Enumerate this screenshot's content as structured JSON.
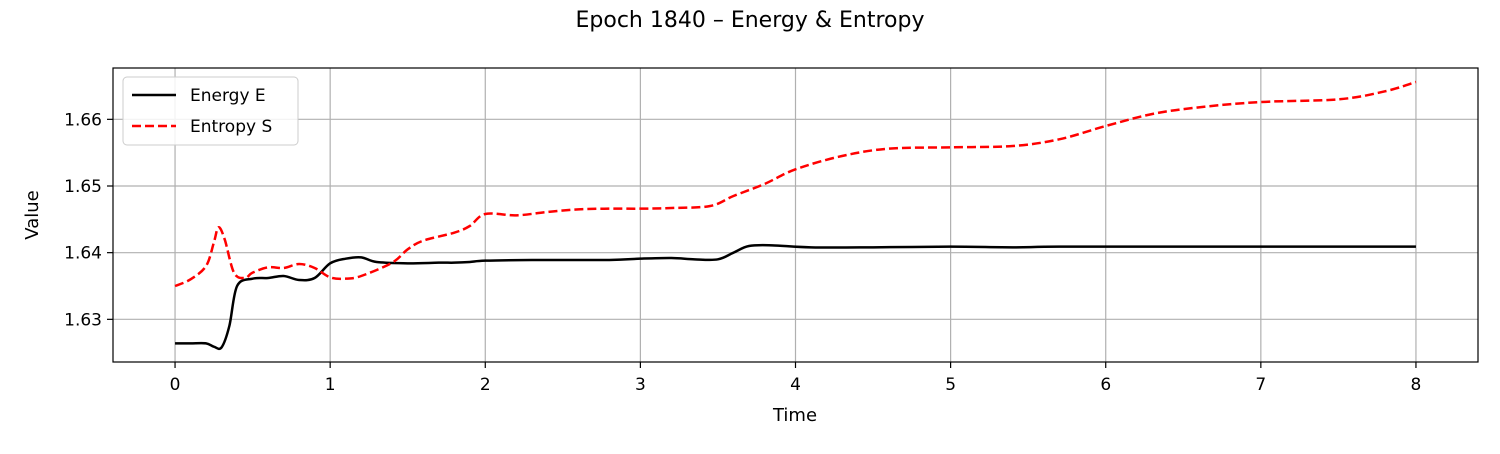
{
  "chart_data": {
    "type": "line",
    "title": "Epoch 1840 – Energy & Entropy",
    "xlabel": "Time",
    "ylabel": "Value",
    "xlim": [
      -0.4,
      8.4
    ],
    "ylim": [
      1.6236,
      1.6677
    ],
    "grid": true,
    "legend_position": "top-left",
    "x_ticks": [
      {
        "value": 0,
        "label": "0"
      },
      {
        "value": 1,
        "label": "1"
      },
      {
        "value": 2,
        "label": "2"
      },
      {
        "value": 3,
        "label": "3"
      },
      {
        "value": 4,
        "label": "4"
      },
      {
        "value": 5,
        "label": "5"
      },
      {
        "value": 6,
        "label": "6"
      },
      {
        "value": 7,
        "label": "7"
      },
      {
        "value": 8,
        "label": "8"
      }
    ],
    "y_ticks": [
      {
        "value": 1.63,
        "label": "1.63"
      },
      {
        "value": 1.64,
        "label": "1.64"
      },
      {
        "value": 1.65,
        "label": "1.65"
      },
      {
        "value": 1.66,
        "label": "1.66"
      }
    ],
    "series": [
      {
        "name": "Energy E",
        "color": "#000000",
        "style": "solid",
        "points": [
          [
            0,
            1.6264
          ],
          [
            0.1,
            1.6264
          ],
          [
            0.2,
            1.6264
          ],
          [
            0.25,
            1.6259
          ],
          [
            0.3,
            1.6258
          ],
          [
            0.35,
            1.629
          ],
          [
            0.4,
            1.635
          ],
          [
            0.5,
            1.6361
          ],
          [
            0.6,
            1.6362
          ],
          [
            0.7,
            1.6365
          ],
          [
            0.8,
            1.6359
          ],
          [
            0.9,
            1.6362
          ],
          [
            1.0,
            1.6384
          ],
          [
            1.1,
            1.6391
          ],
          [
            1.2,
            1.6393
          ],
          [
            1.3,
            1.6386
          ],
          [
            1.5,
            1.6384
          ],
          [
            1.7,
            1.6385
          ],
          [
            1.8,
            1.6385
          ],
          [
            1.9,
            1.6386
          ],
          [
            2.0,
            1.6388
          ],
          [
            2.3,
            1.6389
          ],
          [
            2.8,
            1.6389
          ],
          [
            3.0,
            1.6391
          ],
          [
            3.2,
            1.6392
          ],
          [
            3.35,
            1.639
          ],
          [
            3.5,
            1.639
          ],
          [
            3.6,
            1.64
          ],
          [
            3.7,
            1.641
          ],
          [
            3.85,
            1.6411
          ],
          [
            4.1,
            1.6408
          ],
          [
            4.5,
            1.6408
          ],
          [
            5.0,
            1.6409
          ],
          [
            5.4,
            1.6408
          ],
          [
            5.7,
            1.6409
          ],
          [
            6.5,
            1.6409
          ],
          [
            7.0,
            1.6409
          ],
          [
            8.0,
            1.6409
          ]
        ]
      },
      {
        "name": "Entropy S",
        "color": "#ff0000",
        "style": "dashed",
        "points": [
          [
            0,
            1.635
          ],
          [
            0.1,
            1.636
          ],
          [
            0.2,
            1.638
          ],
          [
            0.25,
            1.6415
          ],
          [
            0.28,
            1.6438
          ],
          [
            0.32,
            1.642
          ],
          [
            0.38,
            1.637
          ],
          [
            0.45,
            1.6362
          ],
          [
            0.5,
            1.637
          ],
          [
            0.6,
            1.6378
          ],
          [
            0.7,
            1.6377
          ],
          [
            0.8,
            1.6383
          ],
          [
            0.9,
            1.6377
          ],
          [
            1.0,
            1.6363
          ],
          [
            1.1,
            1.6361
          ],
          [
            1.2,
            1.6365
          ],
          [
            1.4,
            1.6385
          ],
          [
            1.5,
            1.6405
          ],
          [
            1.6,
            1.6418
          ],
          [
            1.8,
            1.643
          ],
          [
            1.9,
            1.644
          ],
          [
            2.0,
            1.6458
          ],
          [
            2.2,
            1.6456
          ],
          [
            2.4,
            1.6461
          ],
          [
            2.6,
            1.6465
          ],
          [
            2.8,
            1.6466
          ],
          [
            3.0,
            1.6466
          ],
          [
            3.2,
            1.6467
          ],
          [
            3.45,
            1.647
          ],
          [
            3.6,
            1.6485
          ],
          [
            3.8,
            1.6503
          ],
          [
            4.0,
            1.6525
          ],
          [
            4.3,
            1.6545
          ],
          [
            4.6,
            1.6556
          ],
          [
            5.0,
            1.6558
          ],
          [
            5.4,
            1.656
          ],
          [
            5.7,
            1.657
          ],
          [
            6.0,
            1.659
          ],
          [
            6.3,
            1.6608
          ],
          [
            6.6,
            1.6618
          ],
          [
            7.0,
            1.6626
          ],
          [
            7.5,
            1.663
          ],
          [
            7.8,
            1.6642
          ],
          [
            8.0,
            1.6656
          ]
        ]
      }
    ]
  }
}
